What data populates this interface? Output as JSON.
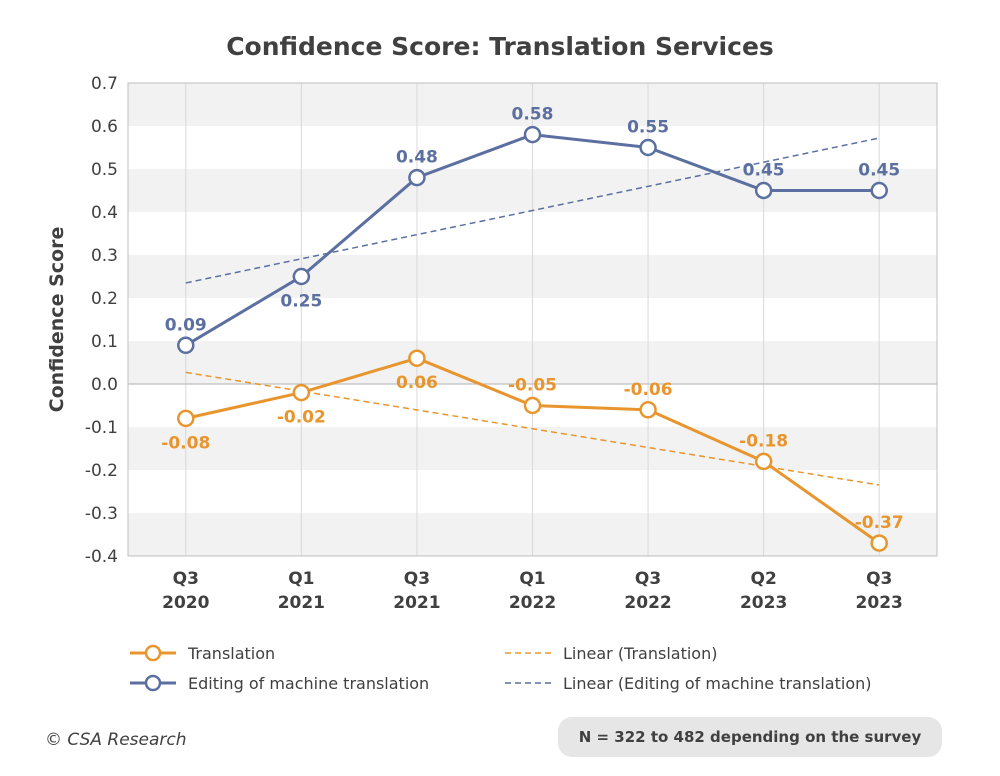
{
  "chart_data": {
    "type": "line",
    "title": "Confidence Score: Translation Services",
    "xlabel": "",
    "ylabel": "Confidence Score",
    "ylim": [
      -0.4,
      0.7
    ],
    "yticks": [
      "0.7",
      "0.6",
      "0.5",
      "0.4",
      "0.3",
      "0.2",
      "0.1",
      "0.0",
      "-0.1",
      "-0.2",
      "-0.3",
      "-0.4"
    ],
    "categories": [
      [
        "Q3",
        "2020"
      ],
      [
        "Q1",
        "2021"
      ],
      [
        "Q3",
        "2021"
      ],
      [
        "Q1",
        "2022"
      ],
      [
        "Q3",
        "2022"
      ],
      [
        "Q2",
        "2023"
      ],
      [
        "Q3",
        "2023"
      ]
    ],
    "series": [
      {
        "name": "Translation",
        "color": "#e8952e",
        "values": [
          -0.08,
          -0.02,
          0.06,
          -0.05,
          -0.06,
          -0.18,
          -0.37
        ],
        "labels": [
          "-0.08",
          "-0.02",
          "0.06",
          "-0.05",
          "-0.06",
          "-0.18",
          "-0.37"
        ],
        "label_pos": [
          "below",
          "below",
          "below",
          "above",
          "above",
          "above",
          "above"
        ]
      },
      {
        "name": "Editing of machine translation",
        "color": "#5b6fa0",
        "values": [
          0.09,
          0.25,
          0.48,
          0.58,
          0.55,
          0.45,
          0.45
        ],
        "labels": [
          "0.09",
          "0.25",
          "0.48",
          "0.58",
          "0.55",
          "0.45",
          "0.45"
        ],
        "label_pos": [
          "above",
          "below",
          "above",
          "above",
          "above",
          "above",
          "above"
        ]
      }
    ],
    "trendlines": [
      {
        "name": "Linear (Translation)",
        "color": "#e8952e",
        "start": 0.027,
        "end": -0.235
      },
      {
        "name": "Linear (Editing of machine translation)",
        "color": "#5b6fa0",
        "start": 0.235,
        "end": 0.572
      }
    ],
    "grid": "horizontal bands",
    "legend": "bottom"
  },
  "footer": {
    "copyright": "© CSA Research",
    "note": "N = 322 to 482 depending on the survey"
  }
}
